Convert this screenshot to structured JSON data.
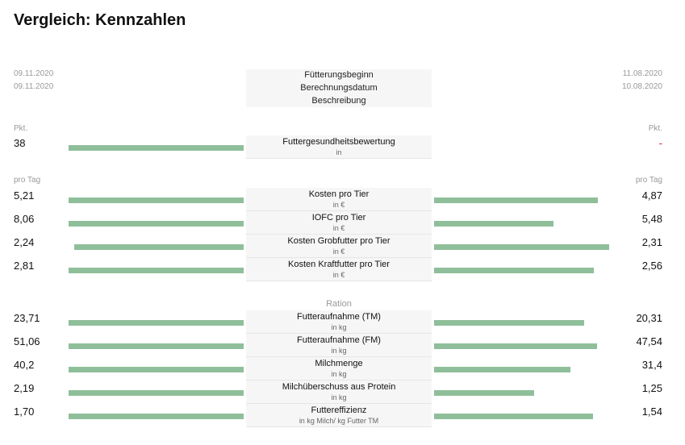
{
  "title": "Vergleich: Kennzahlen",
  "header": {
    "left_dates": [
      "09.11.2020",
      "09.11.2020"
    ],
    "right_dates": [
      "11.08.2020",
      "10.08.2020"
    ],
    "center_labels": [
      "Fütterungsbeginn",
      "Berechnungsdatum",
      "Beschreibung"
    ]
  },
  "units": {
    "pkt_left": "Pkt.",
    "pkt_right": "Pkt.",
    "tag_left": "pro Tag",
    "tag_right": "pro Tag",
    "ration": "Ration"
  },
  "rows": [
    {
      "name": "Futtergesundheitsbewertung",
      "unit": "in",
      "left": "38",
      "right": "-",
      "left_fill": 1.0,
      "right_fill": 0
    },
    {
      "name": "Kosten pro Tier",
      "unit": "in €",
      "left": "5,21",
      "right": "4,87",
      "left_fill": 1.0,
      "right_fill": 0.934
    },
    {
      "name": "IOFC pro Tier",
      "unit": "in €",
      "left": "8,06",
      "right": "5,48",
      "left_fill": 1.0,
      "right_fill": 0.68
    },
    {
      "name": "Kosten Grobfutter pro Tier",
      "unit": "in €",
      "left": "2,24",
      "right": "2,31",
      "left_fill": 0.97,
      "right_fill": 1.0
    },
    {
      "name": "Kosten Kraftfutter pro Tier",
      "unit": "in €",
      "left": "2,81",
      "right": "2,56",
      "left_fill": 1.0,
      "right_fill": 0.911
    },
    {
      "name": "Futteraufnahme (TM)",
      "unit": "in kg",
      "left": "23,71",
      "right": "20,31",
      "left_fill": 1.0,
      "right_fill": 0.857
    },
    {
      "name": "Futteraufnahme (FM)",
      "unit": "in kg",
      "left": "51,06",
      "right": "47,54",
      "left_fill": 1.0,
      "right_fill": 0.931
    },
    {
      "name": "Milchmenge",
      "unit": "in kg",
      "left": "40,2",
      "right": "31,4",
      "left_fill": 1.0,
      "right_fill": 0.781
    },
    {
      "name": "Milchüberschuss aus Protein",
      "unit": "in kg",
      "left": "2,19",
      "right": "1,25",
      "left_fill": 1.0,
      "right_fill": 0.571
    },
    {
      "name": "Futtereffizienz",
      "unit": "in kg Milch/ kg Futter TM",
      "left": "1,70",
      "right": "1,54",
      "left_fill": 1.0,
      "right_fill": 0.906
    }
  ],
  "colors": {
    "bar": "#8fbf9a",
    "dash": "#e02020"
  }
}
